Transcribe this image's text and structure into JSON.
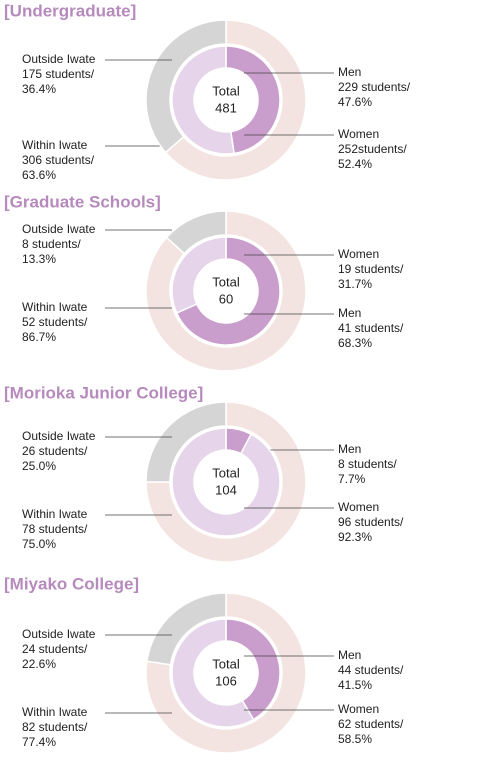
{
  "chart_data": [
    {
      "type": "donut",
      "title": "[Undergraduate]",
      "center_label": "Total",
      "total": 481,
      "rings": [
        {
          "categories": [
            "Within Iwate",
            "Outside Iwate"
          ],
          "values": [
            306,
            175
          ],
          "value_labels": [
            "306 students/",
            "175 students/"
          ],
          "percentages": [
            63.6,
            36.4
          ],
          "percentage_labels": [
            "63.6%",
            "36.4%"
          ],
          "colors": [
            "#f4e4e1",
            "#d5d5d5"
          ]
        },
        {
          "categories": [
            "Men",
            "Women"
          ],
          "values": [
            229,
            252
          ],
          "value_labels": [
            "229 students/",
            "252students/"
          ],
          "percentages": [
            47.6,
            52.4
          ],
          "percentage_labels": [
            "47.6%",
            "52.4%"
          ],
          "colors": [
            "#c99dcc",
            "#e6d4ea"
          ]
        }
      ]
    },
    {
      "type": "donut",
      "title": "[Graduate Schools]",
      "center_label": "Total",
      "total": 60,
      "rings": [
        {
          "categories": [
            "Within Iwate",
            "Outside Iwate"
          ],
          "values": [
            52,
            8
          ],
          "value_labels": [
            "52 students/",
            "8 students/"
          ],
          "percentages": [
            86.7,
            13.3
          ],
          "percentage_labels": [
            "86.7%",
            "13.3%"
          ],
          "colors": [
            "#f4e4e1",
            "#d5d5d5"
          ]
        },
        {
          "categories": [
            "Men",
            "Women"
          ],
          "values": [
            41,
            19
          ],
          "value_labels": [
            "41 students/",
            "19 students/"
          ],
          "percentages": [
            68.3,
            31.7
          ],
          "percentage_labels": [
            "68.3%",
            "31.7%"
          ],
          "colors": [
            "#c99dcc",
            "#e6d4ea"
          ]
        }
      ]
    },
    {
      "type": "donut",
      "title": "[Morioka Junior College]",
      "center_label": "Total",
      "total": 104,
      "rings": [
        {
          "categories": [
            "Within Iwate",
            "Outside Iwate"
          ],
          "values": [
            78,
            26
          ],
          "value_labels": [
            "78 students/",
            "26 students/"
          ],
          "percentages": [
            75.0,
            25.0
          ],
          "percentage_labels": [
            "75.0%",
            "25.0%"
          ],
          "colors": [
            "#f4e4e1",
            "#d5d5d5"
          ]
        },
        {
          "categories": [
            "Men",
            "Women"
          ],
          "values": [
            8,
            96
          ],
          "value_labels": [
            "8 students/",
            "96 students/"
          ],
          "percentages": [
            7.7,
            92.3
          ],
          "percentage_labels": [
            "7.7%",
            "92.3%"
          ],
          "colors": [
            "#c99dcc",
            "#e6d4ea"
          ]
        }
      ]
    },
    {
      "type": "donut",
      "title": "[Miyako College]",
      "center_label": "Total",
      "total": 106,
      "rings": [
        {
          "categories": [
            "Within Iwate",
            "Outside Iwate"
          ],
          "values": [
            82,
            24
          ],
          "value_labels": [
            "82 students/",
            "24 students/"
          ],
          "percentages": [
            77.4,
            22.6
          ],
          "percentage_labels": [
            "77.4%",
            "22.6%"
          ],
          "colors": [
            "#f4e4e1",
            "#d5d5d5"
          ]
        },
        {
          "categories": [
            "Men",
            "Women"
          ],
          "values": [
            44,
            62
          ],
          "value_labels": [
            "44 students/",
            "62 students/"
          ],
          "percentages": [
            41.5,
            58.5
          ],
          "percentage_labels": [
            "41.5%",
            "58.5%"
          ],
          "colors": [
            "#c99dcc",
            "#e6d4ea"
          ]
        }
      ]
    }
  ]
}
